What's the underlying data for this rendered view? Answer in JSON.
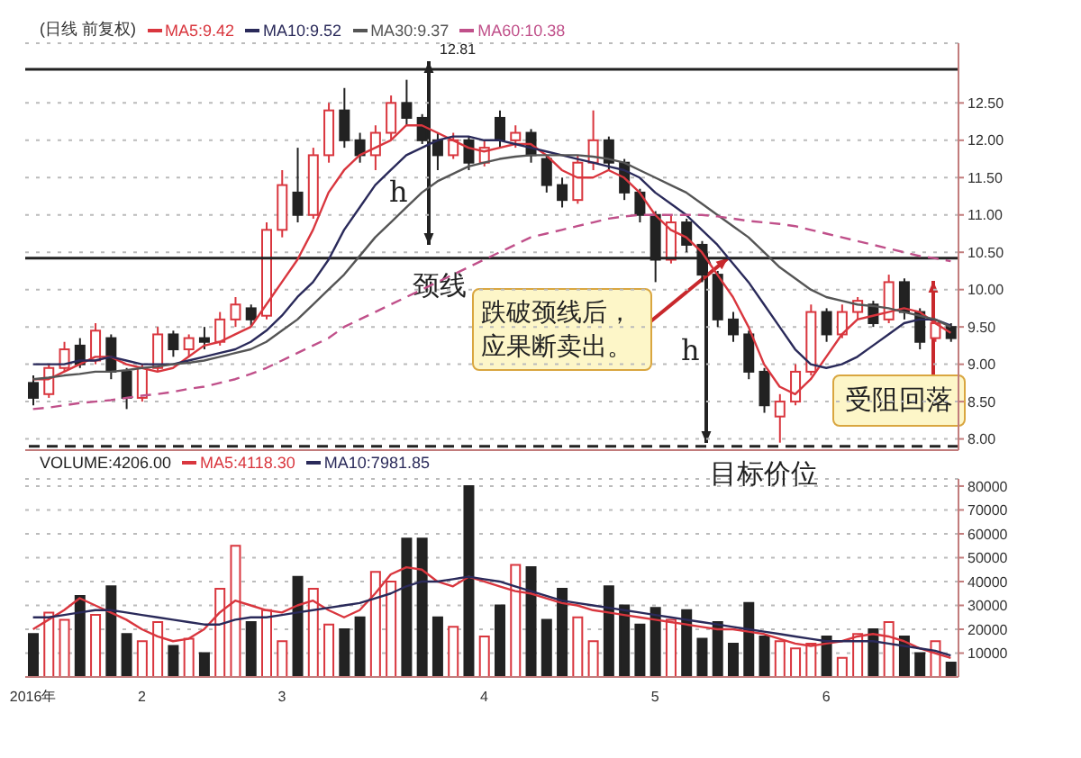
{
  "chart_data": [
    {
      "type": "candlestick",
      "title": "(日线 前复权)",
      "legend": "top left",
      "tick_labels": "y",
      "grid": "y",
      "ohlc": [
        [
          8.75,
          8.85,
          8.45,
          8.55
        ],
        [
          8.6,
          9.0,
          8.55,
          8.95
        ],
        [
          8.95,
          9.3,
          8.9,
          9.2
        ],
        [
          9.25,
          9.35,
          8.95,
          9.0
        ],
        [
          9.05,
          9.55,
          9.0,
          9.45
        ],
        [
          9.35,
          9.4,
          8.8,
          8.9
        ],
        [
          8.9,
          8.95,
          8.4,
          8.55
        ],
        [
          8.55,
          9.0,
          8.5,
          8.95
        ],
        [
          8.95,
          9.5,
          8.9,
          9.4
        ],
        [
          9.4,
          9.45,
          9.1,
          9.2
        ],
        [
          9.2,
          9.4,
          9.1,
          9.35
        ],
        [
          9.35,
          9.5,
          9.2,
          9.3
        ],
        [
          9.3,
          9.7,
          9.25,
          9.6
        ],
        [
          9.6,
          9.9,
          9.5,
          9.8
        ],
        [
          9.75,
          9.8,
          9.5,
          9.6
        ],
        [
          9.65,
          10.9,
          9.6,
          10.8
        ],
        [
          10.8,
          11.6,
          10.7,
          11.4
        ],
        [
          11.3,
          11.9,
          10.9,
          11.0
        ],
        [
          11.0,
          11.9,
          10.95,
          11.8
        ],
        [
          11.8,
          12.5,
          11.7,
          12.4
        ],
        [
          12.4,
          12.7,
          11.9,
          12.0
        ],
        [
          12.0,
          12.1,
          11.7,
          11.8
        ],
        [
          11.8,
          12.2,
          11.6,
          12.1
        ],
        [
          12.1,
          12.6,
          12.0,
          12.5
        ],
        [
          12.5,
          12.81,
          12.2,
          12.3
        ],
        [
          12.3,
          12.35,
          11.95,
          12.0
        ],
        [
          12.0,
          12.1,
          11.6,
          11.8
        ],
        [
          11.8,
          12.1,
          11.75,
          12.0
        ],
        [
          12.0,
          12.05,
          11.6,
          11.7
        ],
        [
          11.7,
          12.0,
          11.65,
          11.9
        ],
        [
          12.3,
          12.4,
          11.9,
          12.0
        ],
        [
          12.0,
          12.2,
          11.9,
          12.1
        ],
        [
          12.1,
          12.15,
          11.7,
          11.8
        ],
        [
          11.75,
          11.8,
          11.3,
          11.4
        ],
        [
          11.4,
          11.5,
          11.1,
          11.2
        ],
        [
          11.2,
          11.8,
          11.15,
          11.7
        ],
        [
          11.7,
          12.4,
          11.6,
          12.0
        ],
        [
          12.0,
          12.05,
          11.6,
          11.7
        ],
        [
          11.7,
          11.75,
          11.2,
          11.3
        ],
        [
          11.3,
          11.35,
          10.9,
          11.0
        ],
        [
          11.0,
          11.05,
          10.1,
          10.4
        ],
        [
          10.4,
          11.0,
          10.35,
          10.9
        ],
        [
          10.9,
          10.95,
          10.5,
          10.6
        ],
        [
          10.6,
          10.65,
          10.1,
          10.2
        ],
        [
          10.2,
          10.25,
          9.5,
          9.6
        ],
        [
          9.6,
          9.7,
          9.3,
          9.4
        ],
        [
          9.4,
          9.45,
          8.8,
          8.9
        ],
        [
          8.9,
          8.95,
          8.35,
          8.45
        ],
        [
          8.3,
          8.6,
          7.95,
          8.5
        ],
        [
          8.5,
          9.0,
          8.45,
          8.9
        ],
        [
          8.9,
          9.8,
          8.85,
          9.7
        ],
        [
          9.7,
          9.75,
          9.3,
          9.4
        ],
        [
          9.4,
          9.8,
          9.35,
          9.7
        ],
        [
          9.7,
          9.9,
          9.6,
          9.85
        ],
        [
          9.8,
          9.85,
          9.5,
          9.55
        ],
        [
          9.6,
          10.2,
          9.55,
          10.1
        ],
        [
          10.1,
          10.15,
          9.6,
          9.7
        ],
        [
          9.7,
          9.75,
          9.2,
          9.3
        ],
        [
          9.35,
          9.6,
          9.3,
          9.55
        ],
        [
          9.5,
          9.55,
          9.3,
          9.35
        ]
      ],
      "colors": [
        "#222222",
        "#d9363e",
        "#d9363e",
        "#222222",
        "#d9363e",
        "#222222",
        "#222222",
        "#d9363e",
        "#d9363e",
        "#222222",
        "#d9363e",
        "#222222",
        "#d9363e",
        "#d9363e",
        "#222222",
        "#d9363e",
        "#d9363e",
        "#222222",
        "#d9363e",
        "#d9363e",
        "#222222",
        "#222222",
        "#d9363e",
        "#d9363e",
        "#222222",
        "#222222",
        "#222222",
        "#d9363e",
        "#222222",
        "#d9363e",
        "#222222",
        "#d9363e",
        "#222222",
        "#222222",
        "#222222",
        "#d9363e",
        "#d9363e",
        "#222222",
        "#222222",
        "#222222",
        "#222222",
        "#d9363e",
        "#222222",
        "#222222",
        "#222222",
        "#222222",
        "#222222",
        "#222222",
        "#d9363e",
        "#d9363e",
        "#d9363e",
        "#222222",
        "#d9363e",
        "#d9363e",
        "#222222",
        "#d9363e",
        "#222222",
        "#222222",
        "#d9363e",
        "#222222"
      ],
      "series": [
        {
          "name": "MA5:9.42",
          "type": "line",
          "color": "#d9363e",
          "values": [
            8.8,
            8.8,
            8.9,
            9.0,
            9.1,
            9.1,
            9.0,
            8.95,
            8.9,
            8.95,
            9.1,
            9.25,
            9.3,
            9.4,
            9.5,
            9.8,
            10.1,
            10.4,
            10.8,
            11.3,
            11.6,
            11.8,
            11.9,
            12.0,
            12.2,
            12.2,
            12.1,
            12.0,
            11.9,
            11.85,
            11.9,
            11.95,
            11.95,
            11.8,
            11.6,
            11.5,
            11.5,
            11.6,
            11.5,
            11.3,
            11.0,
            10.8,
            10.7,
            10.5,
            10.2,
            9.9,
            9.5,
            9.0,
            8.7,
            8.6,
            8.8,
            9.1,
            9.4,
            9.6,
            9.65,
            9.7,
            9.75,
            9.7,
            9.55,
            9.42
          ]
        },
        {
          "name": "MA10:9.52",
          "type": "line",
          "color": "#2a2a5a",
          "values": [
            9.0,
            9.0,
            9.0,
            9.05,
            9.05,
            9.1,
            9.05,
            9.0,
            9.0,
            9.0,
            9.05,
            9.1,
            9.15,
            9.2,
            9.3,
            9.45,
            9.65,
            9.9,
            10.1,
            10.4,
            10.8,
            11.1,
            11.4,
            11.6,
            11.8,
            11.9,
            12.0,
            12.05,
            12.05,
            12.0,
            12.0,
            11.95,
            11.9,
            11.85,
            11.8,
            11.75,
            11.7,
            11.65,
            11.6,
            11.5,
            11.3,
            11.15,
            11.0,
            10.8,
            10.6,
            10.35,
            10.1,
            9.8,
            9.5,
            9.2,
            9.0,
            8.95,
            9.0,
            9.1,
            9.25,
            9.4,
            9.55,
            9.6,
            9.6,
            9.52
          ]
        },
        {
          "name": "MA30:9.37",
          "type": "line",
          "color": "#555555",
          "values": [
            8.8,
            8.82,
            8.85,
            8.87,
            8.9,
            8.9,
            8.92,
            8.95,
            8.97,
            9.0,
            9.02,
            9.05,
            9.1,
            9.15,
            9.2,
            9.3,
            9.45,
            9.6,
            9.8,
            10.0,
            10.2,
            10.45,
            10.7,
            10.9,
            11.1,
            11.3,
            11.45,
            11.55,
            11.65,
            11.7,
            11.75,
            11.78,
            11.8,
            11.8,
            11.8,
            11.8,
            11.78,
            11.75,
            11.7,
            11.6,
            11.5,
            11.4,
            11.3,
            11.15,
            11.0,
            10.85,
            10.7,
            10.5,
            10.3,
            10.15,
            10.0,
            9.9,
            9.85,
            9.8,
            9.78,
            9.75,
            9.7,
            9.65,
            9.6,
            9.5
          ]
        },
        {
          "name": "MA60:10.38",
          "type": "line",
          "color": "#c0508a",
          "line_style": "dashed",
          "values": [
            8.4,
            8.42,
            8.45,
            8.48,
            8.5,
            8.52,
            8.55,
            8.58,
            8.6,
            8.63,
            8.67,
            8.7,
            8.75,
            8.8,
            8.87,
            8.95,
            9.05,
            9.15,
            9.25,
            9.35,
            9.5,
            9.6,
            9.7,
            9.8,
            9.9,
            10.0,
            10.1,
            10.2,
            10.3,
            10.4,
            10.5,
            10.6,
            10.7,
            10.75,
            10.8,
            10.85,
            10.9,
            10.95,
            10.98,
            11.0,
            11.0,
            11.0,
            11.0,
            11.0,
            10.98,
            10.95,
            10.92,
            10.9,
            10.88,
            10.85,
            10.8,
            10.75,
            10.7,
            10.65,
            10.6,
            10.55,
            10.5,
            10.45,
            10.42,
            10.38
          ]
        }
      ],
      "ylim": [
        7.85,
        13.3
      ],
      "yticks": [
        {
          "value": 8,
          "label": "8.00"
        },
        {
          "value": 8.5,
          "label": "8.50"
        },
        {
          "value": 9,
          "label": "9.00"
        },
        {
          "value": 9.5,
          "label": "9.50"
        },
        {
          "value": 10,
          "label": "10.00"
        },
        {
          "value": 10.5,
          "label": "10.50"
        },
        {
          "value": 11,
          "label": "11.00"
        },
        {
          "value": 11.5,
          "label": "11.50"
        },
        {
          "value": 12,
          "label": "12.00"
        },
        {
          "value": 12.5,
          "label": "12.50"
        }
      ],
      "ref_lines": [
        {
          "axis": "y",
          "value": 12.95,
          "label": null,
          "color": "#222222"
        },
        {
          "axis": "y",
          "value": 10.42,
          "label": "颈线",
          "color": "#222222"
        },
        {
          "axis": "y",
          "value": 7.9,
          "label": "目标价位",
          "color": "#222222",
          "line_style": "dashed"
        }
      ],
      "annotations": [
        "12.81",
        "h",
        "h",
        {
          "text": "跌破颈线后，应果断卖出。",
          "y": 10.42
        },
        "受阻回落"
      ]
    },
    {
      "type": "bar",
      "legend": "top left",
      "grid": "y",
      "categories": [
        "2016年",
        null,
        null,
        null,
        null,
        null,
        null,
        "2",
        null,
        null,
        null,
        null,
        null,
        null,
        null,
        null,
        "3",
        null,
        null,
        null,
        null,
        null,
        null,
        null,
        null,
        null,
        null,
        null,
        null,
        "4",
        null,
        null,
        null,
        null,
        null,
        null,
        null,
        null,
        null,
        null,
        "5",
        null,
        null,
        null,
        null,
        null,
        null,
        null,
        null,
        null,
        null,
        "6",
        null,
        null,
        null,
        null,
        null,
        null,
        null,
        null
      ],
      "series": [
        {
          "name": "VOLUME:4206.00",
          "colors": [
            "#222222",
            "#d9363e",
            "#d9363e",
            "#222222",
            "#d9363e",
            "#222222",
            "#222222",
            "#d9363e",
            "#d9363e",
            "#222222",
            "#d9363e",
            "#222222",
            "#d9363e",
            "#d9363e",
            "#222222",
            "#d9363e",
            "#d9363e",
            "#222222",
            "#d9363e",
            "#d9363e",
            "#222222",
            "#222222",
            "#d9363e",
            "#d9363e",
            "#222222",
            "#222222",
            "#222222",
            "#d9363e",
            "#222222",
            "#d9363e",
            "#222222",
            "#d9363e",
            "#222222",
            "#222222",
            "#222222",
            "#d9363e",
            "#d9363e",
            "#222222",
            "#222222",
            "#222222",
            "#222222",
            "#d9363e",
            "#222222",
            "#222222",
            "#222222",
            "#222222",
            "#222222",
            "#222222",
            "#d9363e",
            "#d9363e",
            "#d9363e",
            "#222222",
            "#d9363e",
            "#d9363e",
            "#222222",
            "#d9363e",
            "#222222",
            "#222222",
            "#d9363e",
            "#222222"
          ],
          "values": [
            18000,
            27000,
            24000,
            34000,
            26000,
            38000,
            18000,
            15000,
            23000,
            13000,
            16000,
            10000,
            37000,
            55000,
            23000,
            28000,
            15000,
            42000,
            37000,
            22000,
            20000,
            25000,
            44000,
            40000,
            58000,
            58000,
            25000,
            21000,
            80000,
            17000,
            30000,
            47000,
            46000,
            24000,
            37000,
            25000,
            15000,
            38000,
            30000,
            22000,
            29000,
            24000,
            28000,
            16000,
            23000,
            14000,
            31000,
            17000,
            15000,
            12000,
            14000,
            17000,
            8000,
            18000,
            20000,
            23000,
            17000,
            10000,
            15000,
            6000
          ]
        },
        {
          "name": "MA5:4118.30",
          "type": "line",
          "color": "#d9363e",
          "values": [
            20000,
            24000,
            28000,
            33000,
            30000,
            27000,
            24000,
            20000,
            17000,
            15000,
            16000,
            20000,
            27000,
            32000,
            30000,
            28000,
            27000,
            30000,
            32000,
            28000,
            25000,
            28000,
            35000,
            43000,
            46000,
            45000,
            40000,
            38000,
            42000,
            40000,
            38000,
            36000,
            35000,
            33000,
            31000,
            30000,
            28000,
            27000,
            26000,
            25000,
            24000,
            23000,
            22000,
            21000,
            20000,
            20000,
            19000,
            18000,
            16000,
            14000,
            13000,
            14000,
            15000,
            17000,
            18000,
            17000,
            15000,
            12000,
            10000,
            8000
          ]
        },
        {
          "name": "MA10:7981.85",
          "type": "line",
          "color": "#2a2a5a",
          "values": [
            25000,
            25000,
            26000,
            27000,
            28000,
            28000,
            27000,
            26000,
            25000,
            24000,
            23000,
            22000,
            22000,
            24000,
            25000,
            25000,
            26000,
            27000,
            28000,
            29000,
            30000,
            31000,
            33000,
            35000,
            38000,
            40000,
            40000,
            41000,
            42000,
            41000,
            40000,
            38000,
            36000,
            34000,
            32000,
            31000,
            30000,
            29000,
            28000,
            27000,
            26000,
            25000,
            24000,
            23000,
            22000,
            21000,
            20000,
            19000,
            18000,
            17000,
            16000,
            15000,
            15000,
            15000,
            15000,
            14000,
            13000,
            12000,
            11000,
            9000
          ]
        }
      ],
      "ylim": [
        0,
        83000
      ],
      "yticks": [
        10000,
        20000,
        30000,
        40000,
        50000,
        60000,
        70000,
        80000
      ]
    }
  ]
}
